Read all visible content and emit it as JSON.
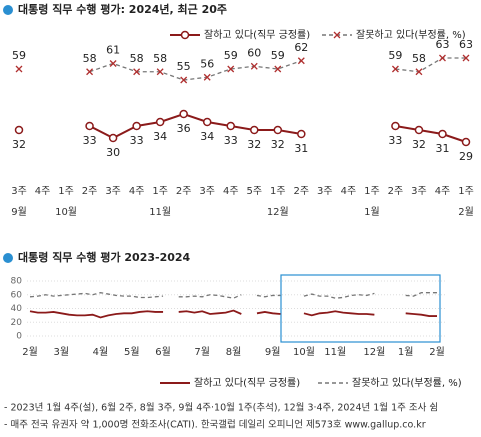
{
  "chart_data": [
    {
      "type": "line",
      "title": "대통령 직무 수행 평가: 2024년, 최근 20주",
      "categories": [
        "3주",
        "4주",
        "1주",
        "2주",
        "3주",
        "4주",
        "1주",
        "2주",
        "3주",
        "4주",
        "5주",
        "1주",
        "2주",
        "3주",
        "4주",
        "1주",
        "2주",
        "3주",
        "4주",
        "1주"
      ],
      "months": [
        "9월",
        null,
        "10월",
        null,
        null,
        null,
        "11월",
        null,
        null,
        null,
        null,
        "12월",
        null,
        null,
        null,
        "1월",
        null,
        null,
        null,
        "2월"
      ],
      "series": [
        {
          "name": "잘하고 있다(직무 긍정률)",
          "color": "#8b1a1a",
          "values": [
            32,
            null,
            null,
            33,
            30,
            33,
            34,
            36,
            34,
            33,
            32,
            32,
            31,
            null,
            null,
            null,
            33,
            32,
            31,
            29
          ]
        },
        {
          "name": "잘못하고 있다(부정률, %)",
          "color": "#777777",
          "values": [
            59,
            null,
            null,
            58,
            61,
            58,
            58,
            55,
            56,
            59,
            60,
            59,
            62,
            null,
            null,
            null,
            59,
            58,
            63,
            63
          ]
        }
      ]
    },
    {
      "type": "line",
      "title": "대통령 직무 수행 평가 2023-2024",
      "categories": [
        "2월",
        null,
        null,
        null,
        "3월",
        null,
        null,
        null,
        null,
        "4월",
        null,
        null,
        null,
        "5월",
        null,
        null,
        null,
        "6월",
        null,
        null,
        null,
        null,
        "7월",
        null,
        null,
        null,
        "8월",
        null,
        null,
        null,
        null,
        "9월",
        null,
        null,
        null,
        "10월",
        null,
        null,
        null,
        "11월",
        null,
        null,
        null,
        null,
        "12월",
        null,
        null,
        null,
        "1월",
        null,
        null,
        null,
        "2월"
      ],
      "ylim": [
        0,
        80
      ],
      "yticks": [
        0,
        20,
        40,
        60,
        80
      ],
      "grid": true,
      "series": [
        {
          "name": "잘하고 있다(직무 긍정률)",
          "color": "#8b1a1a",
          "values": [
            36,
            34,
            34,
            35,
            33,
            31,
            30,
            30,
            31,
            27,
            30,
            32,
            33,
            33,
            35,
            36,
            35,
            35,
            null,
            35,
            36,
            34,
            36,
            32,
            33,
            34,
            37,
            32,
            null,
            33,
            35,
            33,
            32,
            null,
            null,
            33,
            30,
            33,
            34,
            36,
            34,
            33,
            32,
            32,
            31,
            null,
            null,
            null,
            33,
            32,
            31,
            29,
            29
          ]
        },
        {
          "name": "잘못하고 있다(부정률, %)",
          "color": "#777777",
          "values": [
            57,
            58,
            60,
            58,
            59,
            60,
            61,
            62,
            60,
            63,
            61,
            59,
            58,
            58,
            56,
            56,
            57,
            58,
            null,
            57,
            57,
            58,
            57,
            60,
            59,
            57,
            55,
            60,
            null,
            59,
            57,
            59,
            59,
            null,
            null,
            58,
            61,
            58,
            58,
            55,
            56,
            59,
            60,
            59,
            62,
            null,
            null,
            null,
            59,
            58,
            63,
            63,
            63
          ]
        }
      ]
    }
  ],
  "notes": [
    "- 2023년 1월 4주(설), 6월 2주, 8월 3주, 9월 4주·10월 1주(추석), 12월 3·4주, 2024년 1월 1주 조사 쉼",
    "- 매주 전국 유권자 약 1,000명 전화조사(CATI). 한국갤럽 데일리 오피니언 제573호 www.gallup.co.kr"
  ]
}
